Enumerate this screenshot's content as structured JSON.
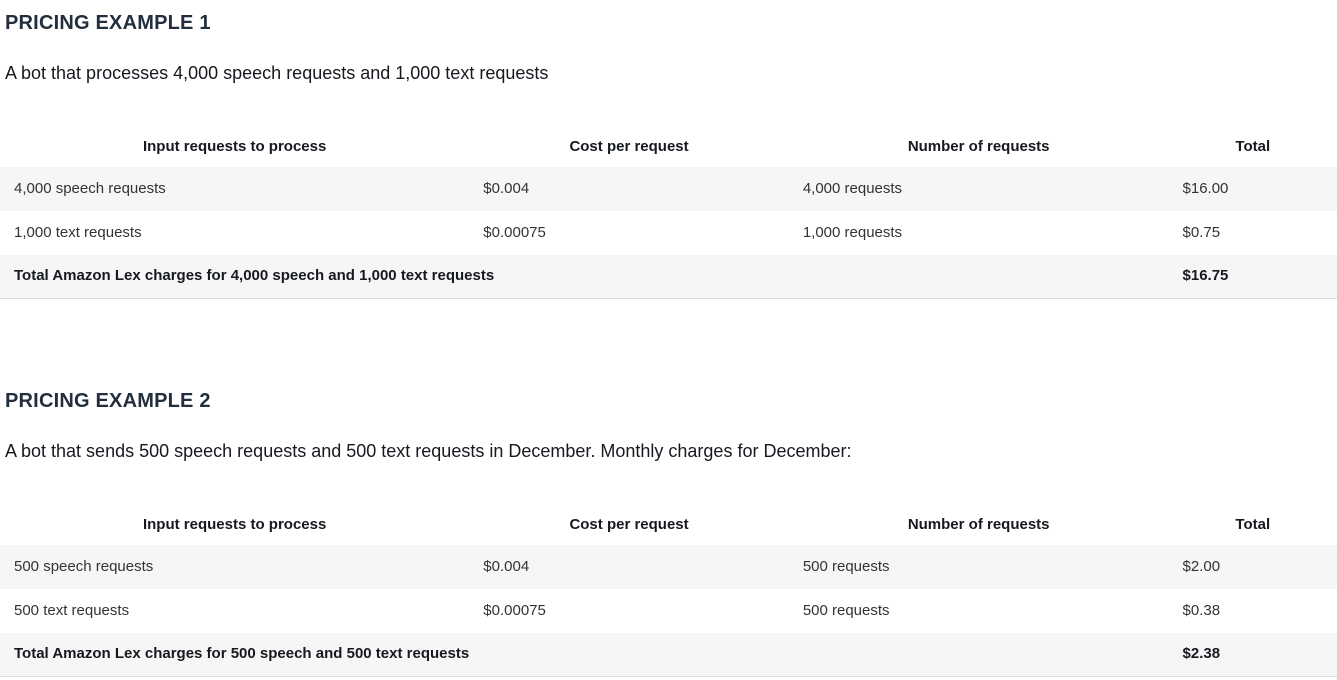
{
  "colors": {
    "heading": "#232f3e",
    "body_text": "#16191f",
    "cell_text": "#333333",
    "row_alt_background": "#f6f6f6",
    "total_row_border": "#d9dbdb",
    "page_background": "#ffffff"
  },
  "examples": [
    {
      "title": "PRICING EXAMPLE 1",
      "description": "A bot that processes 4,000 speech requests and 1,000 text requests",
      "table": {
        "headers": [
          "Input requests to process",
          "Cost per request",
          "Number of requests",
          "Total"
        ],
        "rows": [
          [
            "4,000 speech requests",
            "$0.004",
            "4,000 requests",
            "$16.00"
          ],
          [
            "1,000 text requests",
            "$0.00075",
            "1,000 requests",
            "$0.75"
          ]
        ],
        "total_label": "Total Amazon Lex charges for 4,000 speech and 1,000 text requests",
        "total_value": "$16.75"
      }
    },
    {
      "title": "PRICING EXAMPLE 2",
      "description": "A bot that sends 500 speech requests and 500 text requests in December. Monthly charges for December:",
      "table": {
        "headers": [
          "Input requests to process",
          "Cost per request",
          "Number of requests",
          "Total"
        ],
        "rows": [
          [
            "500 speech requests",
            "$0.004",
            "500 requests",
            "$2.00"
          ],
          [
            "500 text requests",
            "$0.00075",
            "500 requests",
            "$0.38"
          ]
        ],
        "total_label": "Total Amazon Lex charges for 500 speech and 500 text requests",
        "total_value": "$2.38"
      }
    }
  ]
}
